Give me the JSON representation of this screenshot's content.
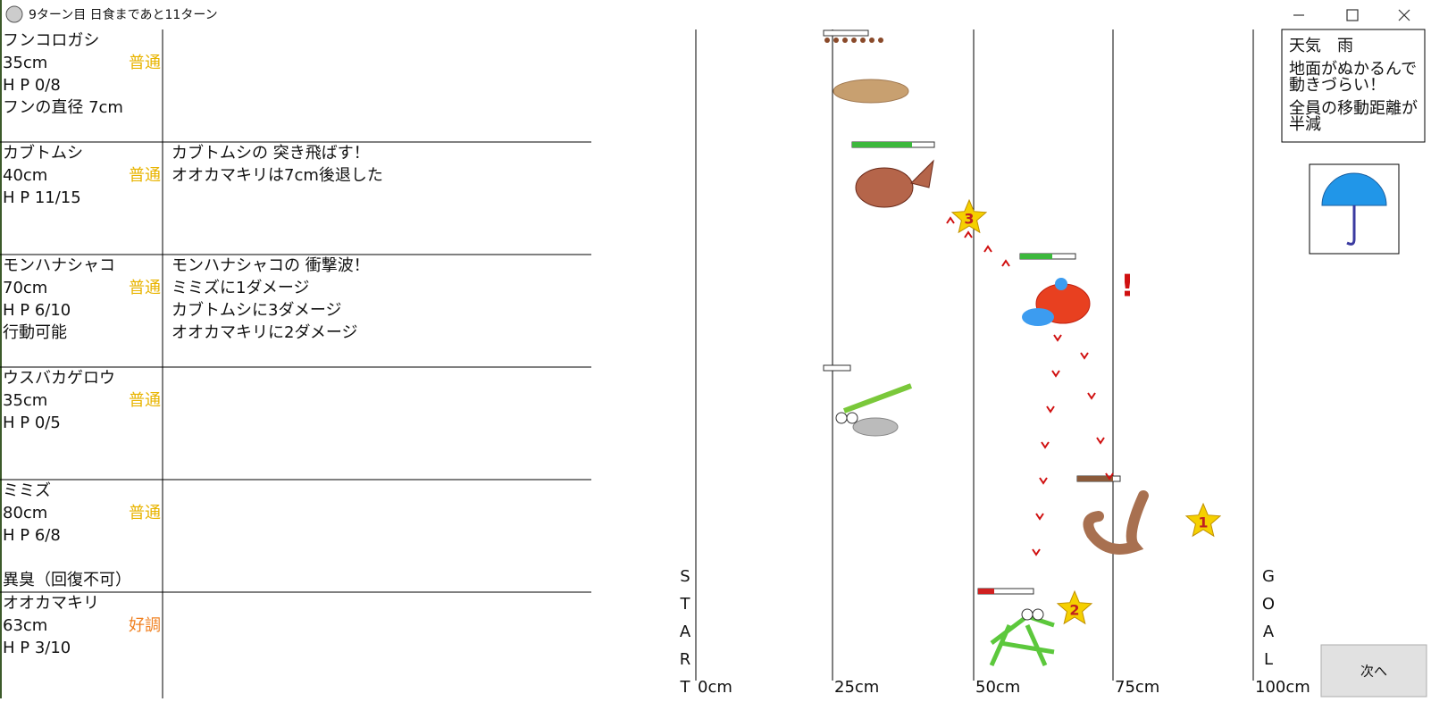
{
  "title": "9ターン目 日食まであと11ターン",
  "units": [
    {
      "name": "フンコロガシ",
      "distance": "35cm",
      "condition": "普通",
      "hp": "H P 0/8",
      "notes": [
        "フンの直径 7cm"
      ]
    },
    {
      "name": "カブトムシ",
      "distance": "40cm",
      "condition": "普通",
      "hp": "H P 11/15",
      "log": [
        "カブトムシの 突き飛ばす！",
        "オオカマキリは7cm後退した"
      ]
    },
    {
      "name": "モンハナシャコ",
      "distance": "70cm",
      "condition": "普通",
      "hp": "H P 6/10",
      "notes": [
        "行動可能"
      ],
      "log": [
        "モンハナシャコの 衝撃波！",
        "ミミズに1ダメージ",
        "カブトムシに3ダメージ",
        "オオカマキリに2ダメージ"
      ]
    },
    {
      "name": "ウスバカゲロウ",
      "distance": "35cm",
      "condition": "普通",
      "hp": "H P 0/5"
    },
    {
      "name": "ミミズ",
      "distance": "80cm",
      "condition": "普通",
      "hp": "H P 6/8",
      "bottom_note": "異臭（回復不可）"
    },
    {
      "name": "オオカマキリ",
      "distance": "63cm",
      "condition": "好調",
      "hp": "H P 3/10"
    }
  ],
  "track": {
    "start_letters": [
      "S",
      "T",
      "A",
      "R",
      "T"
    ],
    "goal_letters": [
      "G",
      "O",
      "A",
      "L"
    ],
    "scale": [
      "0cm",
      "25cm",
      "50cm",
      "75cm",
      "100cm"
    ]
  },
  "weather": [
    [
      "天気　雨"
    ],
    [
      "地面がぬかるんで",
      "動きづらい！"
    ],
    [
      "全員の移動距離が",
      "半減"
    ]
  ],
  "stars": [
    "3",
    "2",
    "1"
  ],
  "alert": "!",
  "next_button": "次へ"
}
